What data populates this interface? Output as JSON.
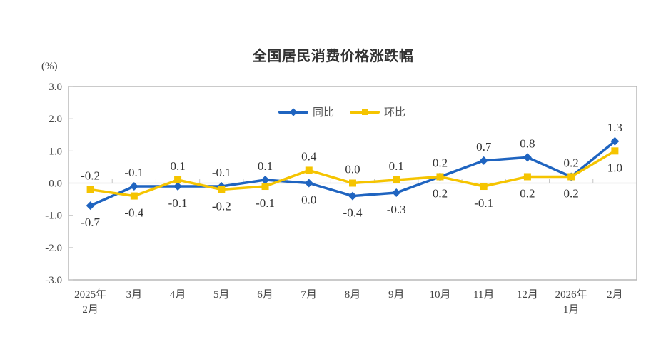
{
  "chart_data": {
    "type": "line",
    "title": "全国居民消费价格涨跌幅",
    "ylabel": "(%)",
    "xlabel": "",
    "ylim": [
      -3.0,
      3.0
    ],
    "yticks": [
      "3.0",
      "2.0",
      "1.0",
      "0.0",
      "-1.0",
      "-2.0",
      "-3.0"
    ],
    "grid": false,
    "legend_position": "top-center",
    "categories": [
      [
        "2025年",
        "2月"
      ],
      [
        "3月"
      ],
      [
        "4月"
      ],
      [
        "5月"
      ],
      [
        "6月"
      ],
      [
        "7月"
      ],
      [
        "8月"
      ],
      [
        "9月"
      ],
      [
        "10月"
      ],
      [
        "11月"
      ],
      [
        "12月"
      ],
      [
        "2026年",
        "1月"
      ],
      [
        "2月"
      ]
    ],
    "series": [
      {
        "name": "同比",
        "color": "#1f64c0",
        "marker": "diamond",
        "values": [
          -0.7,
          -0.1,
          -0.1,
          -0.1,
          0.1,
          0.0,
          -0.4,
          -0.3,
          0.2,
          0.7,
          0.8,
          0.2,
          1.3
        ],
        "labels": [
          "-0.7",
          "-0.1",
          "-0.1",
          "-0.1",
          "0.1",
          "0.0",
          "-0.4",
          "-0.3",
          "0.2",
          "0.7",
          "0.8",
          "0.2",
          "1.3"
        ],
        "label_pos": [
          "below",
          "above",
          "below",
          "above",
          "above",
          "below",
          "below",
          "below",
          "above",
          "above",
          "above",
          "above",
          "above"
        ]
      },
      {
        "name": "环比",
        "color": "#f5c400",
        "marker": "square",
        "values": [
          -0.2,
          -0.4,
          0.1,
          -0.2,
          -0.1,
          0.4,
          0.0,
          0.1,
          0.2,
          -0.1,
          0.2,
          0.2,
          1.0
        ],
        "labels": [
          "-0.2",
          "-0.4",
          "0.1",
          "-0.2",
          "-0.1",
          "0.4",
          "0.0",
          "0.1",
          "0.2",
          "-0.1",
          "0.2",
          "0.2",
          "1.0"
        ],
        "label_pos": [
          "above",
          "below",
          "above",
          "below",
          "below",
          "above",
          "above",
          "above",
          "below",
          "below",
          "below",
          "below",
          "below"
        ]
      }
    ]
  }
}
